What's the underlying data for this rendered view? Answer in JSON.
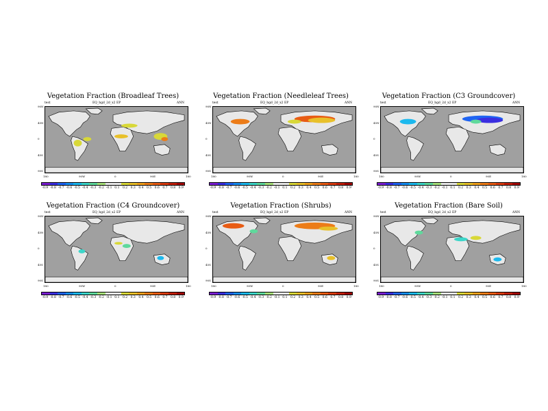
{
  "panels": [
    {
      "title": "Vegetation Fraction (Broadleaf Trees)",
      "case_a": "test",
      "case_b": "EQ_bgd_2d_x2 EP",
      "season": "ANN",
      "scheme": "broad"
    },
    {
      "title": "Vegetation Fraction (Needleleaf Trees)",
      "case_a": "test",
      "case_b": "EQ_bgd_2d_x2 EP",
      "season": "ANN",
      "scheme": "needle"
    },
    {
      "title": "Vegetation Fraction (C3 Groundcover)",
      "case_a": "test",
      "case_b": "EQ_bgd_2d_x2 EP",
      "season": "ANN",
      "scheme": "c3"
    },
    {
      "title": "Vegetation Fraction (C4 Groundcover)",
      "case_a": "test",
      "case_b": "EQ_bgd_2d_x2 EP",
      "season": "ANN",
      "scheme": "c4"
    },
    {
      "title": "Vegetation Fraction (Shrubs)",
      "case_a": "test",
      "case_b": "EQ_bgd_2d_x2 EP",
      "season": "ANN",
      "scheme": "shrubs"
    },
    {
      "title": "Vegetation Fraction (Bare Soil)",
      "case_a": "test",
      "case_b": "EQ_bgd_2d_x2 EP",
      "season": "ANN",
      "scheme": "bare"
    }
  ],
  "lat_labels": [
    "90N",
    "45N",
    "0",
    "45S",
    "90S"
  ],
  "lon_labels": [
    "180",
    "90W",
    "0",
    "90E",
    "180"
  ],
  "colorbar": {
    "labels": [
      "-0.9",
      "-0.8",
      "-0.7",
      "-0.6",
      "-0.5",
      "-0.4",
      "-0.3",
      "-0.2",
      "-0.1",
      "0.1",
      "0.2",
      "0.3",
      "0.4",
      "0.5",
      "0.6",
      "0.7",
      "0.8",
      "0.9"
    ],
    "colors": [
      "#7a1fd1",
      "#3b2fe0",
      "#1f64f2",
      "#168ef0",
      "#1cb9ee",
      "#3dd6c9",
      "#5fd99c",
      "#a7e07a",
      "#e8e8e8",
      "#e8e8e8",
      "#d8d838",
      "#e8c02a",
      "#f0a01c",
      "#ec7c18",
      "#e85c14",
      "#d83c10",
      "#c0200c",
      "#a00808"
    ]
  },
  "palette": {
    "ocean": "#a0a0a0",
    "land": "#e8e8e8",
    "coast": "#000000"
  }
}
